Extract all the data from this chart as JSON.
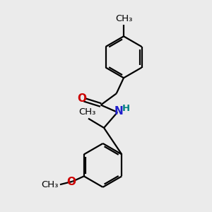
{
  "background_color": "#ebebeb",
  "line_color": "#000000",
  "line_width": 1.6,
  "N_color": "#2020cc",
  "O_color": "#cc0000",
  "H_color": "#008080",
  "font_size_atoms": 9.5,
  "fig_size": [
    3.0,
    3.0
  ],
  "dpi": 100,
  "xlim": [
    0,
    10
  ],
  "ylim": [
    0,
    10
  ]
}
